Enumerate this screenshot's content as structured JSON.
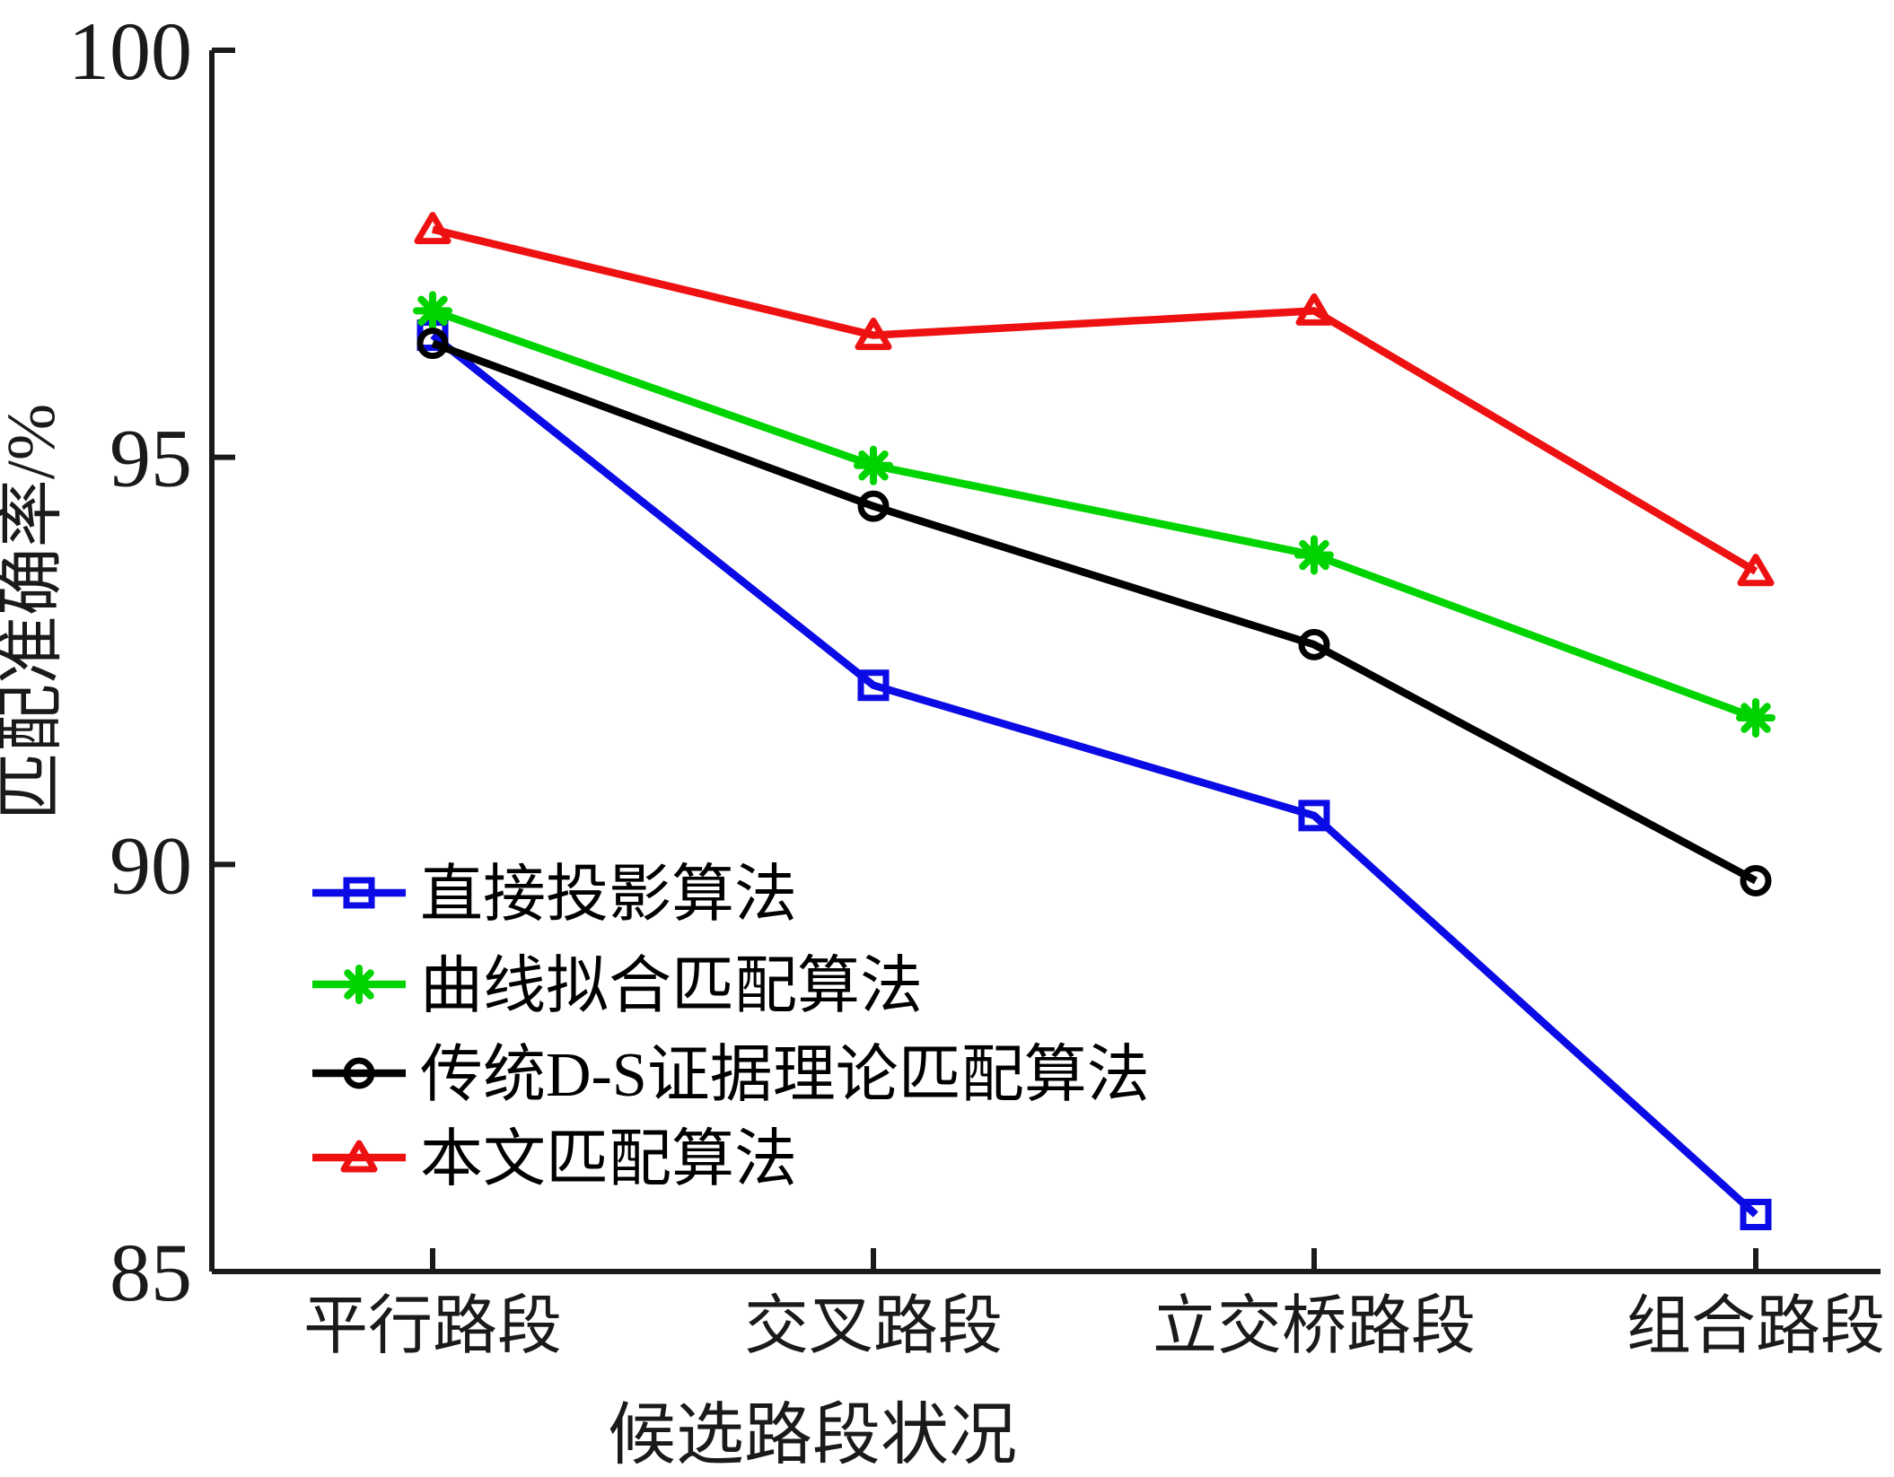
{
  "chart_data": {
    "type": "line",
    "title": "",
    "xlabel": "候选路段状况",
    "ylabel": "匹配准确率/%",
    "categories": [
      "平行路段",
      "交叉路段",
      "立交桥路段",
      "组合路段"
    ],
    "ylim": [
      85,
      100
    ],
    "yticks": [
      85,
      90,
      95,
      100
    ],
    "grid": false,
    "legend_position": "inside-lower-left",
    "axis_color": "#1a1a1a",
    "background": "#ffffff",
    "series": [
      {
        "name": "直接投影算法",
        "color": "#0b0be6",
        "marker": "square",
        "values": [
          96.5,
          92.2,
          90.6,
          85.7
        ]
      },
      {
        "name": "曲线拟合匹配算法",
        "color": "#00d400",
        "marker": "asterisk",
        "values": [
          96.8,
          94.9,
          93.8,
          91.8
        ]
      },
      {
        "name": "传统D-S证据理论匹配算法",
        "color": "#000000",
        "marker": "circle",
        "values": [
          96.4,
          94.4,
          92.7,
          89.8
        ]
      },
      {
        "name": "本文匹配算法",
        "color": "#ee1111",
        "marker": "triangle-up",
        "values": [
          97.8,
          96.5,
          96.8,
          93.6
        ]
      }
    ]
  }
}
